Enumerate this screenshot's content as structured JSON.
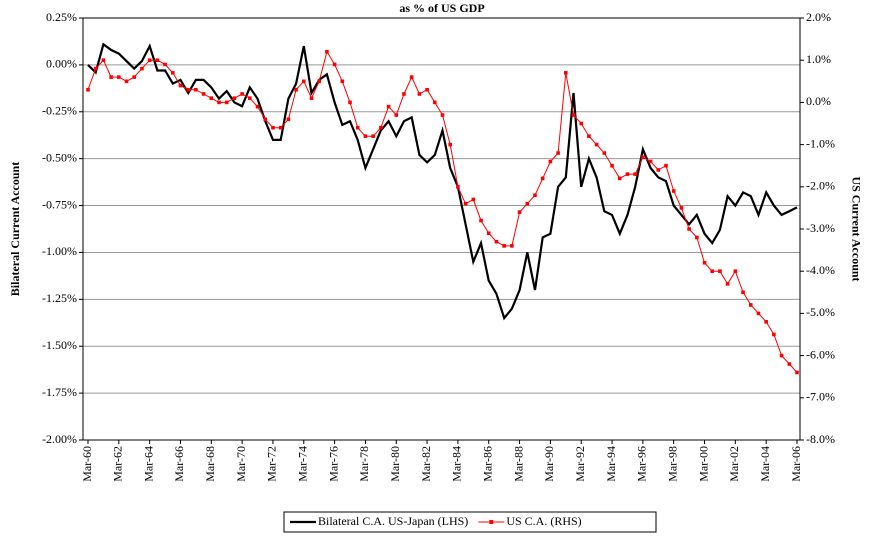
{
  "chart_data": {
    "type": "line",
    "title": "as % of US GDP",
    "y_label": "Bilateral Current Account",
    "y2_label": "US Current Account",
    "categories": [
      "Mar-60",
      null,
      null,
      null,
      "Mar-62",
      null,
      null,
      null,
      "Mar-64",
      null,
      null,
      null,
      "Mar-66",
      null,
      null,
      null,
      "Mar-68",
      null,
      null,
      null,
      "Mar-70",
      null,
      null,
      null,
      "Mar-72",
      null,
      null,
      null,
      "Mar-74",
      null,
      null,
      null,
      "Mar-76",
      null,
      null,
      null,
      "Mar-78",
      null,
      null,
      null,
      "Mar-80",
      null,
      null,
      null,
      "Mar-82",
      null,
      null,
      null,
      "Mar-84",
      null,
      null,
      null,
      "Mar-86",
      null,
      null,
      null,
      "Mar-88",
      null,
      null,
      null,
      "Mar-90",
      null,
      null,
      null,
      "Mar-92",
      null,
      null,
      null,
      "Mar-94",
      null,
      null,
      null,
      "Mar-96",
      null,
      null,
      null,
      "Mar-98",
      null,
      null,
      null,
      "Mar-00",
      null,
      null,
      null,
      "Mar-02",
      null,
      null,
      null,
      "Mar-04",
      null,
      null,
      null,
      "Mar-06"
    ],
    "series": [
      {
        "name": "Bilateral C.A. US-Japan (LHS)",
        "color": "#000000",
        "axis": "y",
        "values": [
          0.0,
          -0.04,
          0.11,
          0.08,
          0.06,
          0.02,
          -0.02,
          0.02,
          0.1,
          -0.03,
          -0.03,
          -0.1,
          -0.08,
          -0.15,
          -0.08,
          -0.08,
          -0.12,
          -0.18,
          -0.14,
          -0.2,
          -0.22,
          -0.12,
          -0.18,
          -0.3,
          -0.4,
          -0.4,
          -0.18,
          -0.1,
          0.1,
          -0.15,
          -0.08,
          -0.05,
          -0.2,
          -0.32,
          -0.3,
          -0.4,
          -0.55,
          -0.45,
          -0.35,
          -0.3,
          -0.38,
          -0.3,
          -0.28,
          -0.48,
          -0.52,
          -0.48,
          -0.35,
          -0.55,
          -0.65,
          -0.85,
          -1.05,
          -0.95,
          -1.15,
          -1.22,
          -1.35,
          -1.3,
          -1.2,
          -1.0,
          -1.2,
          -0.92,
          -0.9,
          -0.65,
          -0.6,
          -0.15,
          -0.65,
          -0.5,
          -0.6,
          -0.78,
          -0.8,
          -0.9,
          -0.8,
          -0.65,
          -0.45,
          -0.55,
          -0.6,
          -0.62,
          -0.75,
          -0.8,
          -0.85,
          -0.8,
          -0.9,
          -0.95,
          -0.88,
          -0.7,
          -0.75,
          -0.68,
          -0.7,
          -0.8,
          -0.68,
          -0.75,
          -0.8,
          -0.78,
          -0.76
        ]
      },
      {
        "name": "US C.A. (RHS)",
        "color": "#ff0000",
        "axis": "y2",
        "values": [
          0.3,
          0.8,
          1.0,
          0.6,
          0.6,
          0.5,
          0.6,
          0.8,
          1.0,
          1.0,
          0.9,
          0.7,
          0.4,
          0.3,
          0.3,
          0.2,
          0.1,
          0.0,
          0.0,
          0.1,
          0.2,
          0.1,
          -0.1,
          -0.4,
          -0.6,
          -0.6,
          -0.4,
          0.3,
          0.5,
          0.1,
          0.5,
          1.2,
          0.9,
          0.5,
          0.0,
          -0.6,
          -0.8,
          -0.8,
          -0.6,
          -0.1,
          -0.3,
          0.2,
          0.6,
          0.2,
          0.3,
          0.0,
          -0.3,
          -1.0,
          -2.0,
          -2.4,
          -2.3,
          -2.8,
          -3.1,
          -3.3,
          -3.4,
          -3.4,
          -2.6,
          -2.4,
          -2.2,
          -1.8,
          -1.4,
          -1.2,
          0.7,
          -0.3,
          -0.5,
          -0.8,
          -1.0,
          -1.2,
          -1.5,
          -1.8,
          -1.7,
          -1.7,
          -1.3,
          -1.4,
          -1.6,
          -1.5,
          -2.1,
          -2.5,
          -3.0,
          -3.2,
          -3.8,
          -4.0,
          -4.0,
          -4.3,
          -4.0,
          -4.5,
          -4.8,
          -5.0,
          -5.2,
          -5.5,
          -6.0,
          -6.2,
          -6.4
        ]
      }
    ],
    "ylim": [
      -2.0,
      0.25
    ],
    "yticks": [
      {
        "value": 0.25,
        "label": "0.25%"
      },
      {
        "value": 0,
        "label": "0.00%"
      },
      {
        "value": -0.25,
        "label": "-0.25%"
      },
      {
        "value": -0.5,
        "label": "-0.50%"
      },
      {
        "value": -0.75,
        "label": "-0.75%"
      },
      {
        "value": -1.0,
        "label": "-1.00%"
      },
      {
        "value": -1.25,
        "label": "-1.25%"
      },
      {
        "value": -1.5,
        "label": "-1.50%"
      },
      {
        "value": -1.75,
        "label": "-1.75%"
      },
      {
        "value": -2.0,
        "label": "-2.00%"
      }
    ],
    "y2lim": [
      -8.0,
      2.0
    ],
    "y2ticks": [
      {
        "value": 2,
        "label": "2.0%"
      },
      {
        "value": 1,
        "label": "1.0%"
      },
      {
        "value": 0,
        "label": "0.0%"
      },
      {
        "value": -1,
        "label": "-1.0%"
      },
      {
        "value": -2,
        "label": "-2.0%"
      },
      {
        "value": -3,
        "label": "-3.0%"
      },
      {
        "value": -4,
        "label": "-4.0%"
      },
      {
        "value": -5,
        "label": "-5.0%"
      },
      {
        "value": -6,
        "label": "-6.0%"
      },
      {
        "value": -7,
        "label": "-7.0%"
      },
      {
        "value": -8,
        "label": "-8.0%"
      }
    ],
    "grid": true,
    "legend": "bottom"
  }
}
